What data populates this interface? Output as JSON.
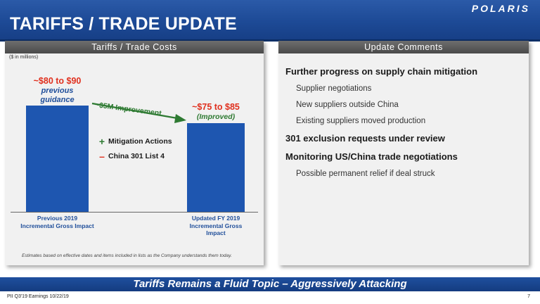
{
  "header": {
    "title": "TARIFFS / TRADE UPDATE",
    "logo": "POLARIS"
  },
  "left_panel": {
    "title": "Tariffs / Trade Costs",
    "units": "($ in millions)",
    "bars": [
      {
        "value_label": "~$80 to $90",
        "note": "previous guidance",
        "category": "Previous 2019 Incremental Gross Impact"
      },
      {
        "value_label": "~$75 to $85",
        "note": "(Improved)",
        "category": "Updated FY 2019 Incremental Gross Impact"
      }
    ],
    "improvement_label": "~$5M Improvement",
    "legend": [
      {
        "symbol": "+",
        "label": "Mitigation Actions",
        "color": "#2e7a32"
      },
      {
        "symbol": "–",
        "label": "China 301 List 4",
        "color": "#e0301e"
      }
    ],
    "footnote": "Estimates based on effective dates and items included in lists as the Company understands them today."
  },
  "chart_data": {
    "type": "bar",
    "title": "Tariffs / Trade Costs",
    "categories": [
      "Previous 2019 Incremental Gross Impact",
      "Updated FY 2019 Incremental Gross Impact"
    ],
    "values": [
      85,
      80
    ],
    "value_labels": [
      "~$80 to $90",
      "~$75 to $85"
    ],
    "ylabel": "($ in millions)",
    "annotation": "~$5M Improvement"
  },
  "right_panel": {
    "title": "Update Comments",
    "items": [
      {
        "text": "Further progress on supply chain mitigation",
        "level": "main"
      },
      {
        "text": "Supplier negotiations",
        "level": "sub"
      },
      {
        "text": "New suppliers outside China",
        "level": "sub"
      },
      {
        "text": "Existing suppliers moved production",
        "level": "sub"
      },
      {
        "text": "301 exclusion requests under review",
        "level": "main"
      },
      {
        "text": "Monitoring US/China trade negotiations",
        "level": "main"
      },
      {
        "text": "Possible permanent relief if deal struck",
        "level": "sub"
      }
    ]
  },
  "banner": "Tariffs Remains a Fluid Topic – Aggressively Attacking",
  "footer": {
    "left": "PII Q3'19 Earnings 10/22/19",
    "page": "7"
  },
  "colors": {
    "brand_blue": "#1e56b0",
    "accent_red": "#e0301e",
    "accent_green": "#2e7a32"
  }
}
